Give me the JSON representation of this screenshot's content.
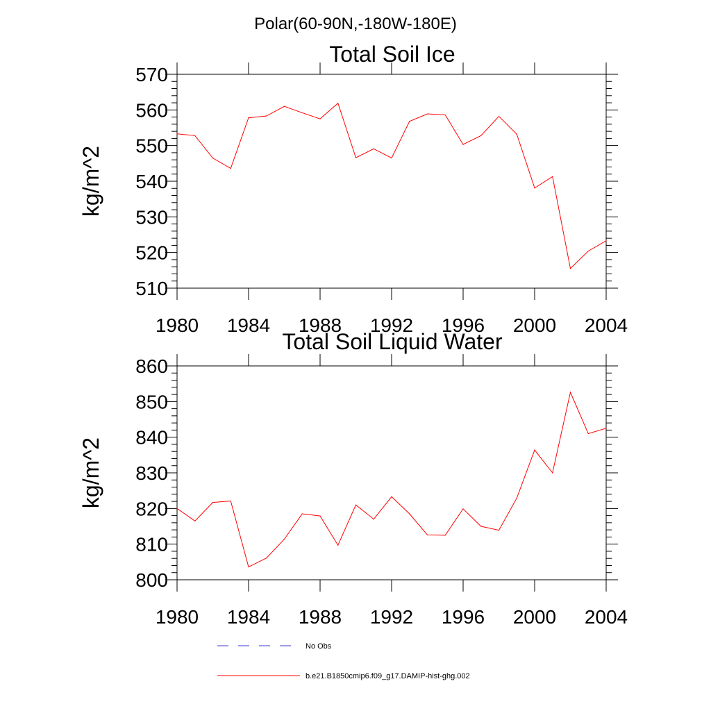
{
  "figure": {
    "suptitle": "Polar(60-90N,-180W-180E)",
    "series_color": "#ff0000",
    "obs_color": "#3b3bd6"
  },
  "legend": {
    "entries": [
      {
        "label": "No Obs",
        "style": "dashed",
        "color": "#3b3bd6"
      },
      {
        "label": "b.e21.B1850cmip6.f09_g17.DAMIP-hist-ghg.002",
        "style": "solid",
        "color": "#ff0000"
      }
    ]
  },
  "chart_data": [
    {
      "type": "line",
      "title": "Total Soil Ice",
      "xlabel": "",
      "ylabel": "kg/m^2",
      "xlim": [
        1980,
        2004
      ],
      "ylim": [
        510,
        570
      ],
      "xticks": [
        1980,
        1984,
        1988,
        1992,
        1996,
        2000,
        2004
      ],
      "yticks": [
        510,
        520,
        530,
        540,
        550,
        560,
        570
      ],
      "grid": false,
      "series": [
        {
          "name": "b.e21.B1850cmip6.f09_g17.DAMIP-hist-ghg.002",
          "x": [
            1980,
            1981,
            1982,
            1983,
            1984,
            1985,
            1986,
            1987,
            1988,
            1989,
            1990,
            1991,
            1992,
            1993,
            1994,
            1995,
            1996,
            1997,
            1998,
            1999,
            2000,
            2001,
            2002,
            2003,
            2004
          ],
          "y": [
            553.3,
            552.8,
            546.5,
            543.6,
            557.8,
            558.3,
            561.0,
            559.2,
            557.5,
            561.9,
            546.6,
            549.1,
            546.5,
            556.8,
            558.9,
            558.6,
            550.3,
            552.8,
            558.2,
            553.2,
            538.1,
            541.3,
            515.5,
            520.4,
            523.3
          ]
        }
      ]
    },
    {
      "type": "line",
      "title": "Total Soil Liquid Water",
      "xlabel": "",
      "ylabel": "kg/m^2",
      "xlim": [
        1980,
        2004
      ],
      "ylim": [
        800,
        860
      ],
      "xticks": [
        1980,
        1984,
        1988,
        1992,
        1996,
        2000,
        2004
      ],
      "yticks": [
        800,
        810,
        820,
        830,
        840,
        850,
        860
      ],
      "grid": false,
      "series": [
        {
          "name": "b.e21.B1850cmip6.f09_g17.DAMIP-hist-ghg.002",
          "x": [
            1980,
            1981,
            1982,
            1983,
            1984,
            1985,
            1986,
            1987,
            1988,
            1989,
            1990,
            1991,
            1992,
            1993,
            1994,
            1995,
            1996,
            1997,
            1998,
            1999,
            2000,
            2001,
            2002,
            2003,
            2004
          ],
          "y": [
            820.0,
            816.5,
            821.7,
            822.1,
            803.6,
            806.1,
            811.4,
            818.5,
            817.9,
            809.7,
            821.0,
            817.0,
            823.3,
            818.5,
            812.6,
            812.5,
            819.9,
            815.0,
            813.9,
            822.9,
            836.4,
            830.0,
            852.6,
            841.0,
            842.5
          ]
        }
      ]
    }
  ]
}
